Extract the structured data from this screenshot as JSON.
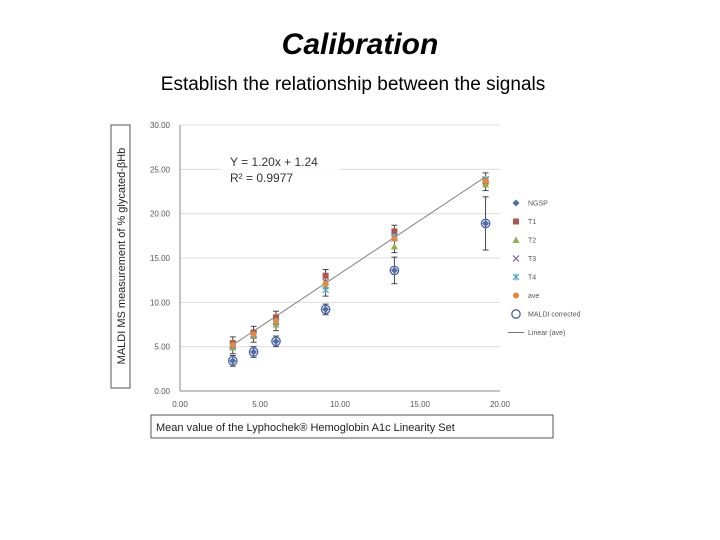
{
  "slide": {
    "title": "Calibration",
    "subtitle": "Establish the relationship between the signals"
  },
  "chart_data": {
    "type": "scatter",
    "xlabel": "Mean value of  the Lyphochek® Hemoglobin A1c Linearity Set",
    "ylabel": "MALDI MS measurement of % glycated-βHb",
    "xlim": [
      0,
      20
    ],
    "ylim": [
      0,
      30
    ],
    "xticks": [
      "0.00",
      "5.00",
      "10.00",
      "15.00",
      "20.00"
    ],
    "yticks": [
      "0.00",
      "5.00",
      "10.00",
      "15.00",
      "20.00",
      "25.00",
      "30.00"
    ],
    "grid": true,
    "legend_position": "right",
    "annotations": [
      "Y = 1.20x + 1.24",
      "R² = 0.9977"
    ],
    "x": [
      3.3,
      4.6,
      6.0,
      9.1,
      13.4,
      19.1
    ],
    "series": [
      {
        "name": "NGSP",
        "marker": "diamond",
        "color": "#4f6fa8",
        "values": [
          3.4,
          4.4,
          5.6,
          9.2,
          13.6,
          18.9
        ]
      },
      {
        "name": "T1",
        "marker": "square",
        "color": "#b5524f",
        "values": [
          5.4,
          6.6,
          8.3,
          13.0,
          18.0,
          23.6
        ]
      },
      {
        "name": "T2",
        "marker": "triangle",
        "color": "#8fb04a",
        "values": [
          4.9,
          6.2,
          7.5,
          11.8,
          16.3,
          23.3
        ]
      },
      {
        "name": "T3",
        "marker": "x",
        "color": "#7b6399",
        "values": [
          5.2,
          6.4,
          7.8,
          12.3,
          17.2,
          23.8
        ]
      },
      {
        "name": "T4",
        "marker": "star",
        "color": "#3fa3c0",
        "values": [
          5.1,
          6.3,
          7.9,
          11.4,
          17.4,
          23.9
        ]
      },
      {
        "name": "ave",
        "marker": "circle",
        "color": "#e58a3a",
        "values": [
          5.2,
          6.4,
          7.9,
          12.1,
          17.2,
          23.7
        ]
      },
      {
        "name": "MALDI corrected",
        "marker": "open-circle",
        "color": "#4a5fb0",
        "values": [
          3.4,
          4.4,
          5.6,
          9.2,
          13.6,
          18.9
        ]
      }
    ],
    "trendline": {
      "name": "Linear (ave)",
      "slope": 1.2,
      "intercept": 1.24,
      "x_range": [
        3.3,
        19.1
      ],
      "color": "#777777"
    }
  }
}
